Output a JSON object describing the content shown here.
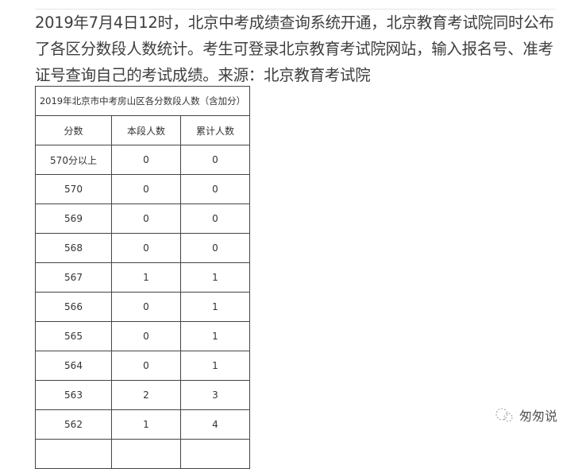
{
  "article": {
    "paragraph": "2019年7月4日12时，北京中考成绩查询系统开通，北京教育考试院同时公布了各区分数段人数统计。考生可登录北京教育考试院网站，输入报名号、准考证号查询自己的考试成绩。来源：北京教育考试院"
  },
  "table": {
    "title": "2019年北京市中考房山区各分数段人数（含加分）",
    "headers": [
      "分数",
      "本段人数",
      "累计人数"
    ],
    "rows": [
      [
        "570分以上",
        "0",
        "0"
      ],
      [
        "570",
        "0",
        "0"
      ],
      [
        "569",
        "0",
        "0"
      ],
      [
        "568",
        "0",
        "0"
      ],
      [
        "567",
        "1",
        "1"
      ],
      [
        "566",
        "0",
        "1"
      ],
      [
        "565",
        "0",
        "1"
      ],
      [
        "564",
        "0",
        "1"
      ],
      [
        "563",
        "2",
        "3"
      ],
      [
        "562",
        "1",
        "4"
      ],
      [
        "",
        "",
        ""
      ]
    ]
  },
  "watermark": {
    "text": "匆匆说",
    "icon": "wechat-bubble-icon"
  }
}
